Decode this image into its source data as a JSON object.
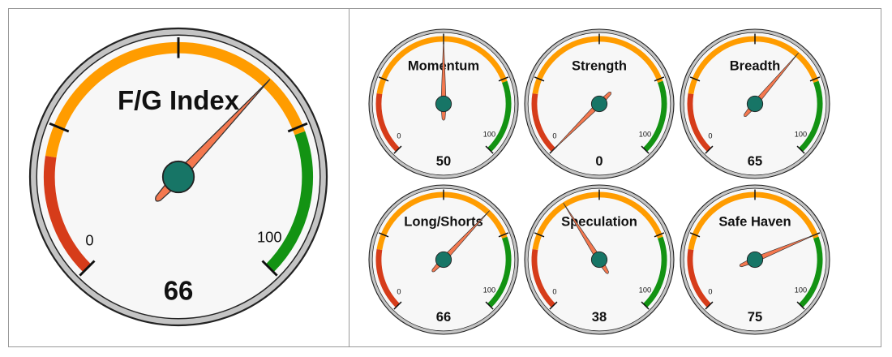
{
  "chart_data": [
    {
      "type": "gauge",
      "title": "F/G Index",
      "value": 66,
      "ylim": [
        0,
        100
      ],
      "yticks": [
        0,
        100
      ],
      "bands": [
        {
          "from": 0,
          "to": 20,
          "color": "#d63c1a"
        },
        {
          "from": 20,
          "to": 76,
          "color": "#ff9c00"
        },
        {
          "from": 76,
          "to": 100,
          "color": "#139313"
        }
      ]
    },
    {
      "type": "gauge",
      "title": "Momentum",
      "value": 50,
      "ylim": [
        0,
        100
      ],
      "yticks": [
        0,
        100
      ],
      "bands": [
        {
          "from": 0,
          "to": 20,
          "color": "#d63c1a"
        },
        {
          "from": 20,
          "to": 76,
          "color": "#ff9c00"
        },
        {
          "from": 76,
          "to": 100,
          "color": "#139313"
        }
      ]
    },
    {
      "type": "gauge",
      "title": "Strength",
      "value": 0,
      "ylim": [
        0,
        100
      ],
      "yticks": [
        0,
        100
      ],
      "bands": [
        {
          "from": 0,
          "to": 20,
          "color": "#d63c1a"
        },
        {
          "from": 20,
          "to": 76,
          "color": "#ff9c00"
        },
        {
          "from": 76,
          "to": 100,
          "color": "#139313"
        }
      ]
    },
    {
      "type": "gauge",
      "title": "Breadth",
      "value": 65,
      "ylim": [
        0,
        100
      ],
      "yticks": [
        0,
        100
      ],
      "bands": [
        {
          "from": 0,
          "to": 20,
          "color": "#d63c1a"
        },
        {
          "from": 20,
          "to": 76,
          "color": "#ff9c00"
        },
        {
          "from": 76,
          "to": 100,
          "color": "#139313"
        }
      ]
    },
    {
      "type": "gauge",
      "title": "Long/Shorts",
      "value": 66,
      "ylim": [
        0,
        100
      ],
      "yticks": [
        0,
        100
      ],
      "bands": [
        {
          "from": 0,
          "to": 20,
          "color": "#d63c1a"
        },
        {
          "from": 20,
          "to": 76,
          "color": "#ff9c00"
        },
        {
          "from": 76,
          "to": 100,
          "color": "#139313"
        }
      ]
    },
    {
      "type": "gauge",
      "title": "Speculation",
      "value": 38,
      "ylim": [
        0,
        100
      ],
      "yticks": [
        0,
        100
      ],
      "bands": [
        {
          "from": 0,
          "to": 20,
          "color": "#d63c1a"
        },
        {
          "from": 20,
          "to": 76,
          "color": "#ff9c00"
        },
        {
          "from": 76,
          "to": 100,
          "color": "#139313"
        }
      ]
    },
    {
      "type": "gauge",
      "title": "Safe Haven",
      "value": 75,
      "ylim": [
        0,
        100
      ],
      "yticks": [
        0,
        100
      ],
      "bands": [
        {
          "from": 0,
          "to": 20,
          "color": "#d63c1a"
        },
        {
          "from": 20,
          "to": 76,
          "color": "#ff9c00"
        },
        {
          "from": 76,
          "to": 100,
          "color": "#139313"
        }
      ]
    }
  ]
}
